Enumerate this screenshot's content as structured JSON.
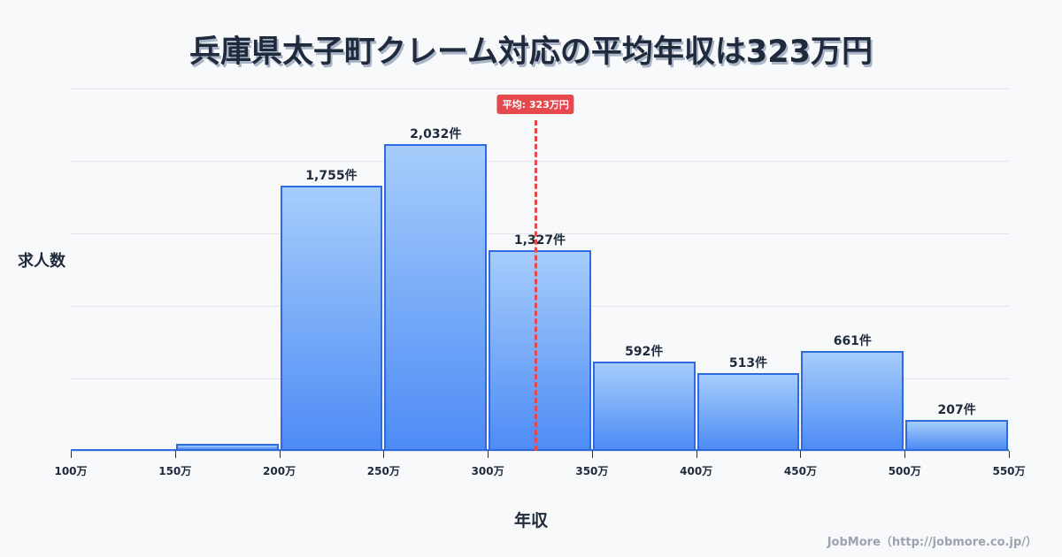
{
  "title": "兵庫県太子町クレーム対応の平均年収は323万円",
  "axis": {
    "ylabel": "求人数",
    "xlabel": "年収"
  },
  "average": {
    "label": "平均: 323万円",
    "value": 323,
    "color": "#e5484d"
  },
  "credit": "JobMore（http://jobmore.co.jp/）",
  "ticks": [
    "100万",
    "150万",
    "200万",
    "250万",
    "300万",
    "350万",
    "400万",
    "450万",
    "500万",
    "550万"
  ],
  "bars": [
    {
      "range": "100-150万",
      "value": 5,
      "label": ""
    },
    {
      "range": "150-200万",
      "value": 47,
      "label": ""
    },
    {
      "range": "200-250万",
      "value": 1755,
      "label": "1,755件"
    },
    {
      "range": "250-300万",
      "value": 2032,
      "label": "2,032件"
    },
    {
      "range": "300-350万",
      "value": 1327,
      "label": "1,327件"
    },
    {
      "range": "350-400万",
      "value": 592,
      "label": "592件"
    },
    {
      "range": "400-450万",
      "value": 513,
      "label": "513件"
    },
    {
      "range": "450-500万",
      "value": 661,
      "label": "661件"
    },
    {
      "range": "500-550万",
      "value": 207,
      "label": "207件"
    }
  ],
  "chart_data": {
    "type": "bar",
    "title": "兵庫県太子町クレーム対応の平均年収は323万円",
    "xlabel": "年収",
    "ylabel": "求人数",
    "categories": [
      "100-150万",
      "150-200万",
      "200-250万",
      "250-300万",
      "300-350万",
      "350-400万",
      "400-450万",
      "450-500万",
      "500-550万"
    ],
    "values": [
      5,
      47,
      1755,
      2032,
      1327,
      592,
      513,
      661,
      207
    ],
    "x_ticks": [
      "100万",
      "150万",
      "200万",
      "250万",
      "300万",
      "350万",
      "400万",
      "450万",
      "500万",
      "550万"
    ],
    "annotations": [
      {
        "type": "vline",
        "x": 323,
        "label": "平均: 323万円"
      }
    ],
    "ylim": [
      0,
      2400
    ],
    "grid": true,
    "legend": null
  }
}
